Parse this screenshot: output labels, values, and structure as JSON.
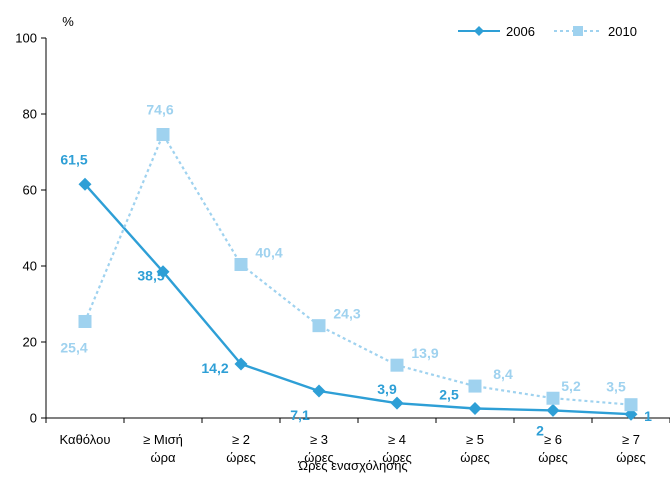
{
  "chart_data": {
    "type": "line",
    "unit_label": "%",
    "xlabel": "Ώρες ενασχόλησης",
    "ylim": [
      0,
      100
    ],
    "yticks": [
      "0",
      "20",
      "40",
      "60",
      "80",
      "100"
    ],
    "categories": [
      [
        "Καθόλου"
      ],
      [
        "≥ Μισή",
        "ώρα"
      ],
      [
        "≥ 2",
        "ώρες"
      ],
      [
        "≥ 3",
        "ώρες"
      ],
      [
        "≥ 4",
        "ώρες"
      ],
      [
        "≥ 5",
        "ώρες"
      ],
      [
        "≥ 6",
        "ώρες"
      ],
      [
        "≥ 7",
        "ώρες"
      ]
    ],
    "series": [
      {
        "name": "2006",
        "values": [
          61.5,
          38.5,
          14.2,
          7.1,
          3.9,
          2.5,
          2,
          1
        ],
        "labels": [
          "61,5",
          "38,5",
          "14,2",
          "7,1",
          "3,9",
          "2,5",
          "2",
          "1"
        ],
        "color": "#2e9fd6",
        "label_color": "#2e9fd6",
        "marker": "diamond",
        "line_style": "solid"
      },
      {
        "name": "2010",
        "values": [
          25.4,
          74.6,
          40.4,
          24.3,
          13.9,
          8.4,
          5.2,
          3.5
        ],
        "labels": [
          "25,4",
          "74,6",
          "40,4",
          "24,3",
          "13,9",
          "8,4",
          "5,2",
          "3,5"
        ],
        "color": "#9fd2ef",
        "label_color": "#9fd2ef",
        "marker": "square",
        "line_style": "dotted"
      }
    ],
    "legend_position": "top-right",
    "grid": false
  }
}
